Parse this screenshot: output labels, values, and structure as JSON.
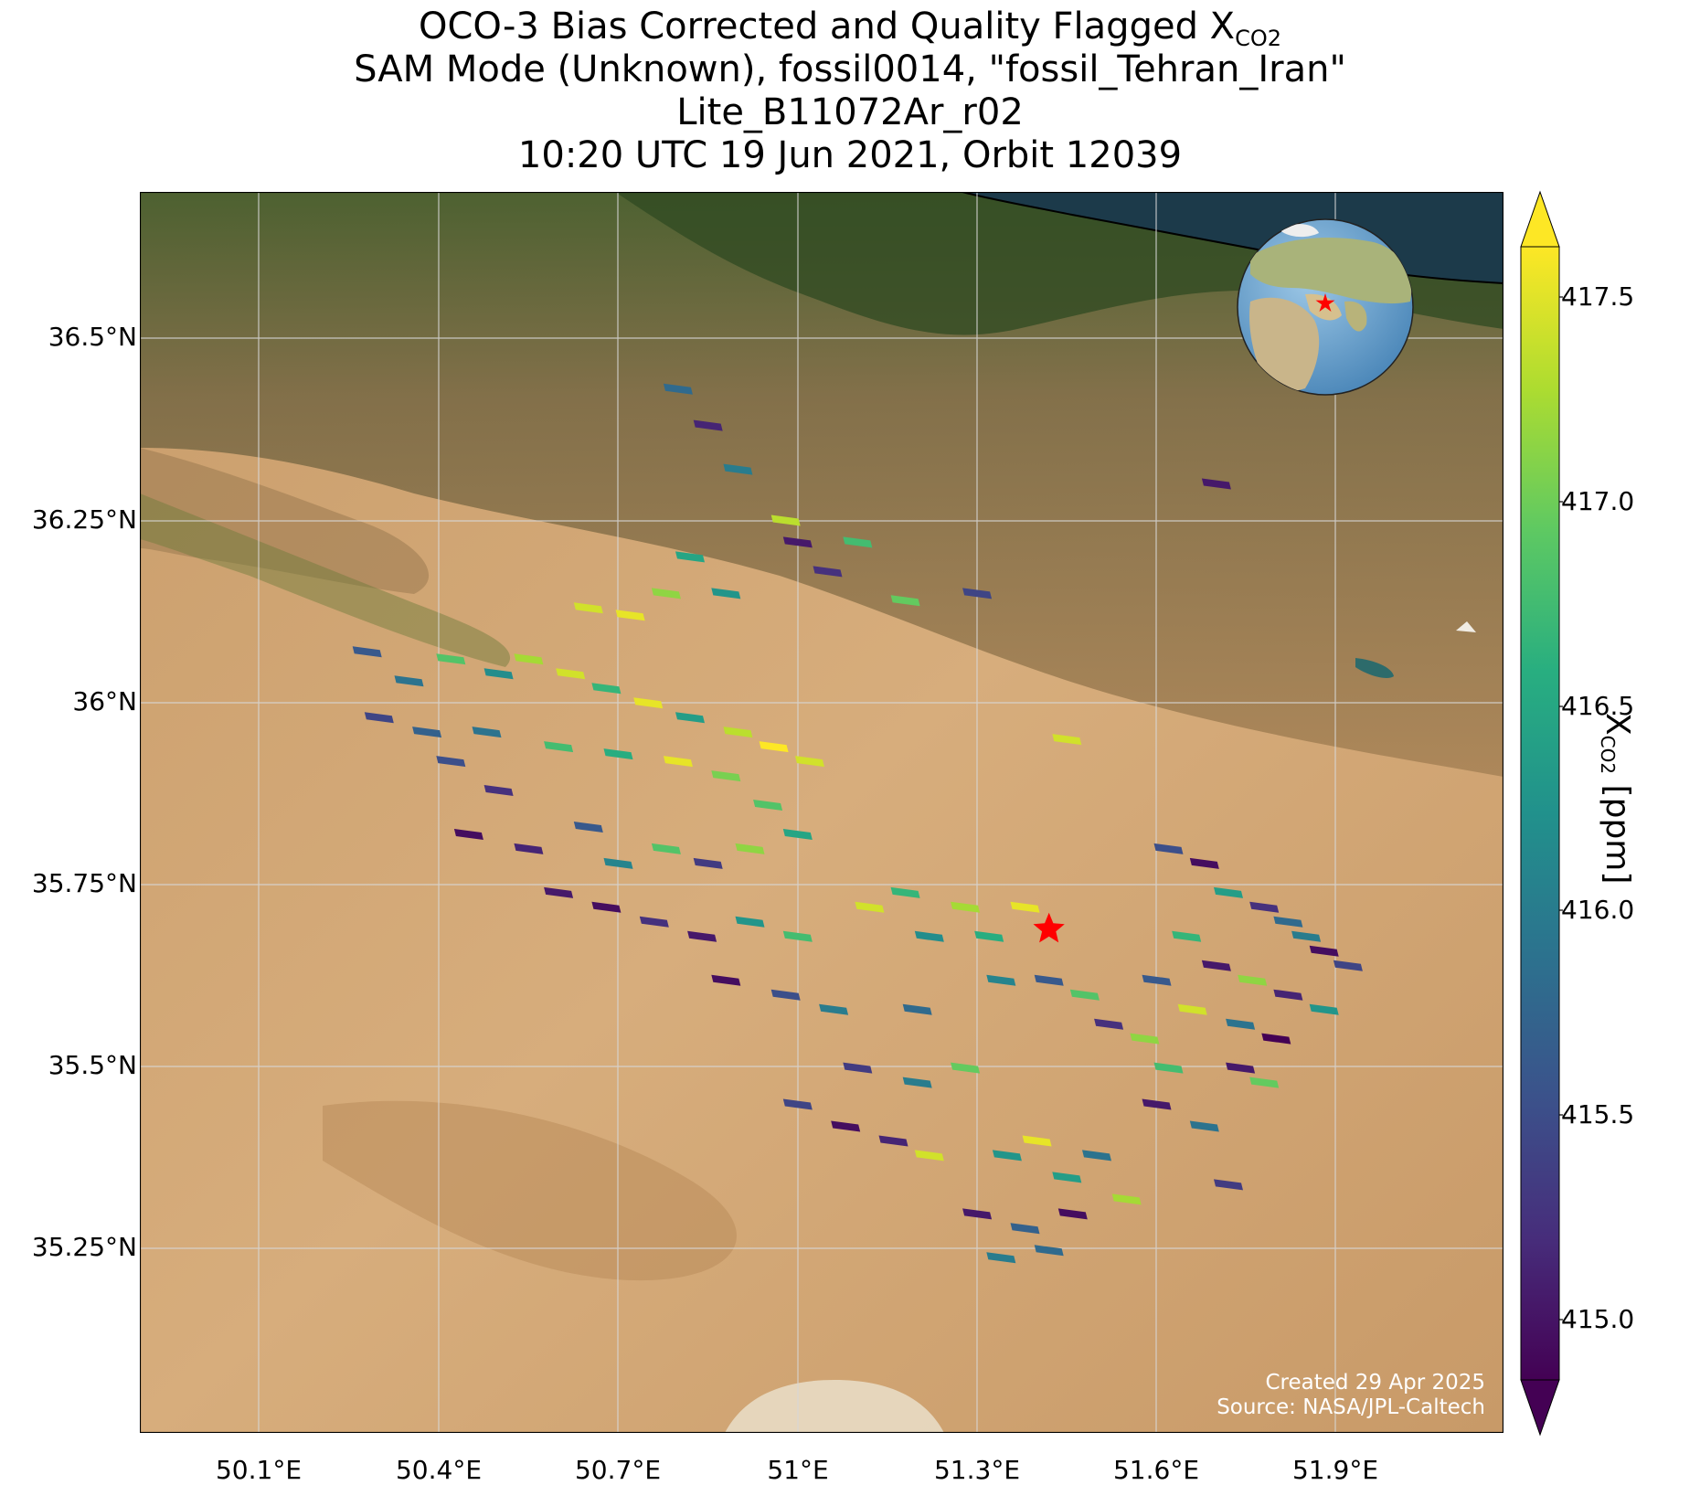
{
  "title": {
    "line1_prefix": "OCO-3 Bias Corrected and Quality Flagged X",
    "line1_sub": "CO2",
    "line2": "SAM Mode (Unknown), fossil0014, \"fossil_Tehran_Iran\"",
    "line3": "Lite_B11072Ar_r02",
    "line4": "10:20 UTC 19 Jun 2021, Orbit 12039"
  },
  "map": {
    "lat_ticks": [
      "36.5°N",
      "36.25°N",
      "36°N",
      "35.75°N",
      "35.5°N",
      "35.25°N"
    ],
    "lon_ticks": [
      "50.1°E",
      "50.4°E",
      "50.7°E",
      "51°E",
      "51.3°E",
      "51.6°E",
      "51.9°E"
    ],
    "extent": {
      "lon_min": 49.9,
      "lon_max": 52.18,
      "lat_min": 35.0,
      "lat_max": 36.7
    },
    "target_marker": {
      "lon": 51.42,
      "lat": 35.69,
      "symbol": "red-star",
      "color": "#ff0000"
    },
    "basemap": "satellite imagery",
    "inset": "orthographic globe with red star over Tehran"
  },
  "colorbar": {
    "title_prefix": "X",
    "title_sub": "CO2",
    "title_suffix": " [ppm]",
    "ticks": [
      "417.5",
      "417.0",
      "416.5",
      "416.0",
      "415.5",
      "415.0"
    ],
    "vmin": 414.8,
    "vmax": 417.7,
    "colormap": "viridis",
    "extend": "both"
  },
  "credits": {
    "created": "Created 29 Apr 2025",
    "source": "Source: NASA/JPL-Caltech"
  },
  "chart_data": {
    "type": "heatmap",
    "xlabel": "Longitude",
    "ylabel": "Latitude",
    "xlim": [
      49.9,
      52.18
    ],
    "ylim": [
      35.0,
      36.7
    ],
    "value_unit": "ppm",
    "clim": [
      414.8,
      417.7
    ],
    "soundings": [
      {
        "lon": 50.8,
        "lat": 36.43,
        "xco2": 415.8
      },
      {
        "lon": 50.85,
        "lat": 36.38,
        "xco2": 415.1
      },
      {
        "lon": 50.9,
        "lat": 36.32,
        "xco2": 416.0
      },
      {
        "lon": 50.98,
        "lat": 36.25,
        "xco2": 417.4
      },
      {
        "lon": 51.0,
        "lat": 36.22,
        "xco2": 415.0
      },
      {
        "lon": 51.05,
        "lat": 36.18,
        "xco2": 415.2
      },
      {
        "lon": 51.1,
        "lat": 36.22,
        "xco2": 416.8
      },
      {
        "lon": 50.82,
        "lat": 36.2,
        "xco2": 416.5
      },
      {
        "lon": 50.78,
        "lat": 36.15,
        "xco2": 417.2
      },
      {
        "lon": 50.72,
        "lat": 36.12,
        "xco2": 417.6
      },
      {
        "lon": 50.65,
        "lat": 36.13,
        "xco2": 417.5
      },
      {
        "lon": 50.88,
        "lat": 36.15,
        "xco2": 416.3
      },
      {
        "lon": 51.18,
        "lat": 36.14,
        "xco2": 417.0
      },
      {
        "lon": 51.3,
        "lat": 36.15,
        "xco2": 415.4
      },
      {
        "lon": 51.45,
        "lat": 35.95,
        "xco2": 417.5
      },
      {
        "lon": 51.7,
        "lat": 36.3,
        "xco2": 415.0
      },
      {
        "lon": 50.28,
        "lat": 36.07,
        "xco2": 415.6
      },
      {
        "lon": 50.35,
        "lat": 36.03,
        "xco2": 415.9
      },
      {
        "lon": 50.42,
        "lat": 36.06,
        "xco2": 416.9
      },
      {
        "lon": 50.5,
        "lat": 36.04,
        "xco2": 416.2
      },
      {
        "lon": 50.55,
        "lat": 36.06,
        "xco2": 417.3
      },
      {
        "lon": 50.62,
        "lat": 36.04,
        "xco2": 417.5
      },
      {
        "lon": 50.68,
        "lat": 36.02,
        "xco2": 416.7
      },
      {
        "lon": 50.75,
        "lat": 36.0,
        "xco2": 417.6
      },
      {
        "lon": 50.82,
        "lat": 35.98,
        "xco2": 416.4
      },
      {
        "lon": 50.9,
        "lat": 35.96,
        "xco2": 417.4
      },
      {
        "lon": 50.96,
        "lat": 35.94,
        "xco2": 417.7
      },
      {
        "lon": 51.02,
        "lat": 35.92,
        "xco2": 417.5
      },
      {
        "lon": 50.88,
        "lat": 35.9,
        "xco2": 417.1
      },
      {
        "lon": 50.95,
        "lat": 35.86,
        "xco2": 416.9
      },
      {
        "lon": 50.8,
        "lat": 35.92,
        "xco2": 417.6
      },
      {
        "lon": 50.7,
        "lat": 35.93,
        "xco2": 416.6
      },
      {
        "lon": 50.6,
        "lat": 35.94,
        "xco2": 416.8
      },
      {
        "lon": 50.48,
        "lat": 35.96,
        "xco2": 415.9
      },
      {
        "lon": 50.38,
        "lat": 35.96,
        "xco2": 415.7
      },
      {
        "lon": 50.3,
        "lat": 35.98,
        "xco2": 415.4
      },
      {
        "lon": 50.42,
        "lat": 35.92,
        "xco2": 415.5
      },
      {
        "lon": 50.5,
        "lat": 35.88,
        "xco2": 415.2
      },
      {
        "lon": 50.45,
        "lat": 35.82,
        "xco2": 414.9
      },
      {
        "lon": 50.55,
        "lat": 35.8,
        "xco2": 415.1
      },
      {
        "lon": 50.65,
        "lat": 35.83,
        "xco2": 415.6
      },
      {
        "lon": 50.7,
        "lat": 35.78,
        "xco2": 416.1
      },
      {
        "lon": 50.78,
        "lat": 35.8,
        "xco2": 416.9
      },
      {
        "lon": 50.85,
        "lat": 35.78,
        "xco2": 415.3
      },
      {
        "lon": 50.92,
        "lat": 35.8,
        "xco2": 417.2
      },
      {
        "lon": 51.0,
        "lat": 35.82,
        "xco2": 416.5
      },
      {
        "lon": 50.6,
        "lat": 35.74,
        "xco2": 415.0
      },
      {
        "lon": 50.68,
        "lat": 35.72,
        "xco2": 414.9
      },
      {
        "lon": 50.76,
        "lat": 35.7,
        "xco2": 415.2
      },
      {
        "lon": 50.84,
        "lat": 35.68,
        "xco2": 415.0
      },
      {
        "lon": 50.92,
        "lat": 35.7,
        "xco2": 416.3
      },
      {
        "lon": 51.0,
        "lat": 35.68,
        "xco2": 416.8
      },
      {
        "lon": 50.88,
        "lat": 35.62,
        "xco2": 414.9
      },
      {
        "lon": 50.98,
        "lat": 35.6,
        "xco2": 415.5
      },
      {
        "lon": 51.06,
        "lat": 35.58,
        "xco2": 416.0
      },
      {
        "lon": 51.12,
        "lat": 35.72,
        "xco2": 417.5
      },
      {
        "lon": 51.18,
        "lat": 35.74,
        "xco2": 416.7
      },
      {
        "lon": 51.22,
        "lat": 35.68,
        "xco2": 416.2
      },
      {
        "lon": 51.28,
        "lat": 35.72,
        "xco2": 417.3
      },
      {
        "lon": 51.32,
        "lat": 35.68,
        "xco2": 416.6
      },
      {
        "lon": 51.38,
        "lat": 35.72,
        "xco2": 417.6
      },
      {
        "lon": 51.34,
        "lat": 35.62,
        "xco2": 416.1
      },
      {
        "lon": 51.42,
        "lat": 35.62,
        "xco2": 415.6
      },
      {
        "lon": 51.48,
        "lat": 35.6,
        "xco2": 416.9
      },
      {
        "lon": 51.52,
        "lat": 35.56,
        "xco2": 415.2
      },
      {
        "lon": 51.58,
        "lat": 35.54,
        "xco2": 417.2
      },
      {
        "lon": 51.2,
        "lat": 35.58,
        "xco2": 415.8
      },
      {
        "lon": 51.1,
        "lat": 35.5,
        "xco2": 415.3
      },
      {
        "lon": 51.2,
        "lat": 35.48,
        "xco2": 416.0
      },
      {
        "lon": 51.28,
        "lat": 35.5,
        "xco2": 417.0
      },
      {
        "lon": 51.0,
        "lat": 35.45,
        "xco2": 415.4
      },
      {
        "lon": 51.08,
        "lat": 35.42,
        "xco2": 414.9
      },
      {
        "lon": 51.16,
        "lat": 35.4,
        "xco2": 415.1
      },
      {
        "lon": 51.22,
        "lat": 35.38,
        "xco2": 417.5
      },
      {
        "lon": 51.35,
        "lat": 35.38,
        "xco2": 416.3
      },
      {
        "lon": 51.4,
        "lat": 35.4,
        "xco2": 417.6
      },
      {
        "lon": 51.45,
        "lat": 35.35,
        "xco2": 416.4
      },
      {
        "lon": 51.5,
        "lat": 35.38,
        "xco2": 415.9
      },
      {
        "lon": 51.3,
        "lat": 35.3,
        "xco2": 415.0
      },
      {
        "lon": 51.38,
        "lat": 35.28,
        "xco2": 415.7
      },
      {
        "lon": 51.46,
        "lat": 35.3,
        "xco2": 414.9
      },
      {
        "lon": 51.55,
        "lat": 35.32,
        "xco2": 417.3
      },
      {
        "lon": 51.34,
        "lat": 35.24,
        "xco2": 416.0
      },
      {
        "lon": 51.42,
        "lat": 35.25,
        "xco2": 415.8
      },
      {
        "lon": 51.6,
        "lat": 35.45,
        "xco2": 415.0
      },
      {
        "lon": 51.68,
        "lat": 35.42,
        "xco2": 415.9
      },
      {
        "lon": 51.62,
        "lat": 35.5,
        "xco2": 416.8
      },
      {
        "lon": 51.72,
        "lat": 35.34,
        "xco2": 415.3
      },
      {
        "lon": 51.62,
        "lat": 35.8,
        "xco2": 415.5
      },
      {
        "lon": 51.68,
        "lat": 35.78,
        "xco2": 414.9
      },
      {
        "lon": 51.72,
        "lat": 35.74,
        "xco2": 416.4
      },
      {
        "lon": 51.78,
        "lat": 35.72,
        "xco2": 415.2
      },
      {
        "lon": 51.82,
        "lat": 35.7,
        "xco2": 415.8
      },
      {
        "lon": 51.88,
        "lat": 35.66,
        "xco2": 414.9
      },
      {
        "lon": 51.92,
        "lat": 35.64,
        "xco2": 415.4
      },
      {
        "lon": 51.65,
        "lat": 35.68,
        "xco2": 416.7
      },
      {
        "lon": 51.7,
        "lat": 35.64,
        "xco2": 415.0
      },
      {
        "lon": 51.76,
        "lat": 35.62,
        "xco2": 417.2
      },
      {
        "lon": 51.82,
        "lat": 35.6,
        "xco2": 415.1
      },
      {
        "lon": 51.88,
        "lat": 35.58,
        "xco2": 416.3
      },
      {
        "lon": 51.6,
        "lat": 35.62,
        "xco2": 415.6
      },
      {
        "lon": 51.66,
        "lat": 35.58,
        "xco2": 417.5
      },
      {
        "lon": 51.74,
        "lat": 35.56,
        "xco2": 415.9
      },
      {
        "lon": 51.8,
        "lat": 35.54,
        "xco2": 414.8
      },
      {
        "lon": 51.74,
        "lat": 35.5,
        "xco2": 415.0
      },
      {
        "lon": 51.78,
        "lat": 35.48,
        "xco2": 417.0
      },
      {
        "lon": 51.85,
        "lat": 35.68,
        "xco2": 416.0
      }
    ]
  }
}
